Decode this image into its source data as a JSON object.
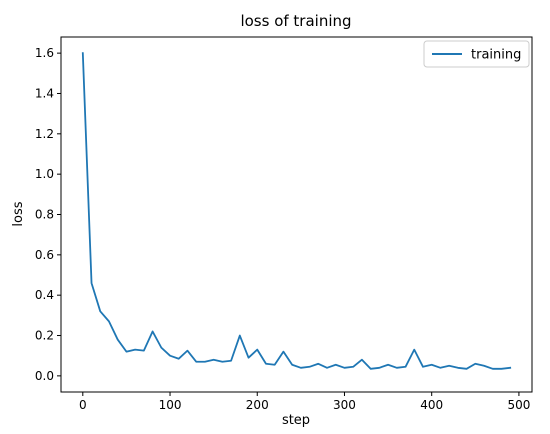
{
  "chart_data": {
    "type": "line",
    "title": "loss of training",
    "xlabel": "step",
    "ylabel": "loss",
    "xlim": [
      -25,
      515
    ],
    "ylim": [
      -0.08,
      1.68
    ],
    "xticks": [
      0,
      100,
      200,
      300,
      400,
      500
    ],
    "yticks": [
      0.0,
      0.2,
      0.4,
      0.6,
      0.8,
      1.0,
      1.2,
      1.4,
      1.6
    ],
    "xtick_labels": [
      "0",
      "100",
      "200",
      "300",
      "400",
      "500"
    ],
    "ytick_labels": [
      "0.0",
      "0.2",
      "0.4",
      "0.6",
      "0.8",
      "1.0",
      "1.2",
      "1.4",
      "1.6"
    ],
    "grid": false,
    "legend_position": "top-right",
    "series": [
      {
        "name": "training",
        "color": "#1f77b4",
        "x": [
          0,
          10,
          20,
          30,
          40,
          50,
          60,
          70,
          80,
          90,
          100,
          110,
          120,
          130,
          140,
          150,
          160,
          170,
          180,
          190,
          200,
          210,
          220,
          230,
          240,
          250,
          260,
          270,
          280,
          290,
          300,
          310,
          320,
          330,
          340,
          350,
          360,
          370,
          380,
          390,
          400,
          410,
          420,
          430,
          440,
          450,
          460,
          470,
          480,
          490
        ],
        "y": [
          1.6,
          0.46,
          0.32,
          0.27,
          0.18,
          0.12,
          0.13,
          0.125,
          0.22,
          0.14,
          0.1,
          0.085,
          0.125,
          0.07,
          0.07,
          0.08,
          0.07,
          0.075,
          0.2,
          0.09,
          0.13,
          0.06,
          0.055,
          0.12,
          0.055,
          0.04,
          0.045,
          0.06,
          0.04,
          0.055,
          0.04,
          0.045,
          0.08,
          0.035,
          0.04,
          0.055,
          0.04,
          0.045,
          0.13,
          0.045,
          0.055,
          0.04,
          0.05,
          0.04,
          0.035,
          0.06,
          0.05,
          0.035,
          0.035,
          0.04
        ]
      }
    ]
  }
}
